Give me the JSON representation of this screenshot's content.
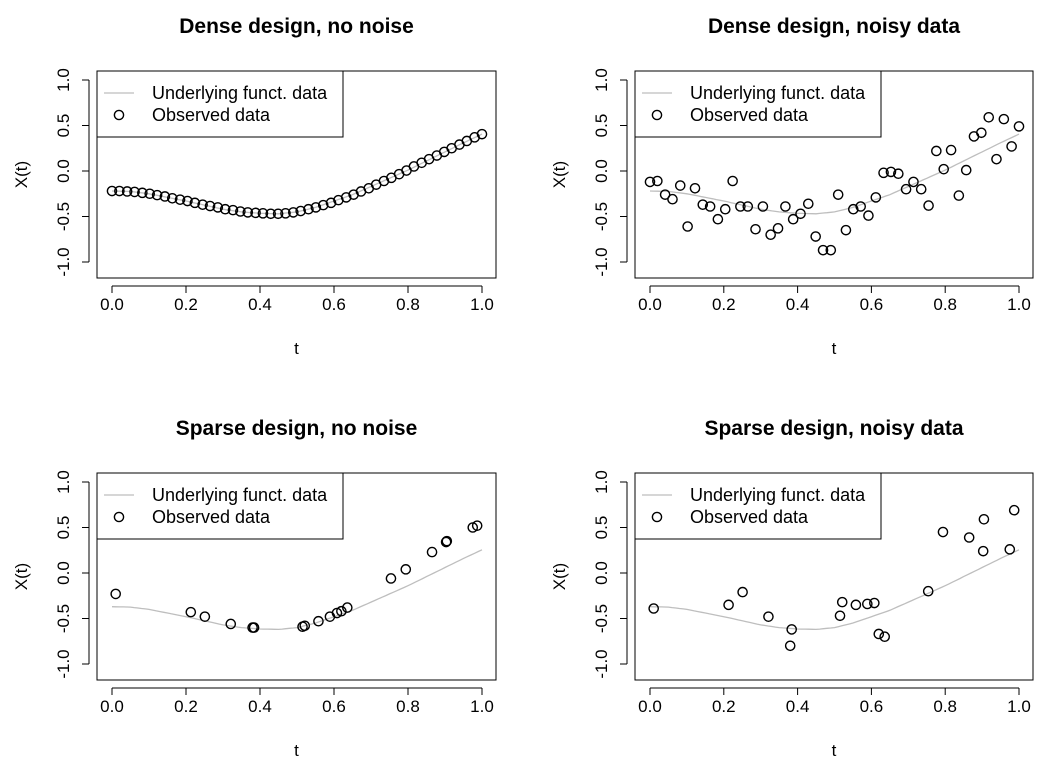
{
  "chart_data": [
    {
      "type": "scatter",
      "title": "Dense design, no noise",
      "xlabel": "t",
      "ylabel": "X(t)",
      "xlim": [
        0,
        1
      ],
      "ylim": [
        -1.1,
        1.1
      ],
      "xticks": [
        "0.0",
        "0.2",
        "0.4",
        "0.6",
        "0.8",
        "1.0"
      ],
      "yticks": [
        "-1.0",
        "-0.5",
        "0.0",
        "0.5",
        "1.0"
      ],
      "legend": [
        "Underlying funct. data",
        "Observed data"
      ],
      "line_color": "#bebebe",
      "series": [
        {
          "name": "Observed data",
          "x": [
            0.0,
            0.02,
            0.041,
            0.061,
            0.082,
            0.102,
            0.122,
            0.143,
            0.163,
            0.184,
            0.204,
            0.224,
            0.245,
            0.265,
            0.286,
            0.306,
            0.327,
            0.347,
            0.367,
            0.388,
            0.408,
            0.429,
            0.449,
            0.469,
            0.49,
            0.51,
            0.531,
            0.551,
            0.571,
            0.592,
            0.612,
            0.633,
            0.653,
            0.673,
            0.694,
            0.714,
            0.735,
            0.755,
            0.776,
            0.796,
            0.816,
            0.837,
            0.857,
            0.878,
            0.898,
            0.918,
            0.939,
            0.959,
            0.98,
            1.0
          ],
          "y": [
            -0.22,
            -0.22,
            -0.225,
            -0.23,
            -0.24,
            -0.25,
            -0.265,
            -0.28,
            -0.3,
            -0.315,
            -0.33,
            -0.35,
            -0.37,
            -0.385,
            -0.4,
            -0.42,
            -0.43,
            -0.445,
            -0.455,
            -0.46,
            -0.465,
            -0.47,
            -0.47,
            -0.465,
            -0.455,
            -0.44,
            -0.42,
            -0.4,
            -0.375,
            -0.35,
            -0.32,
            -0.29,
            -0.26,
            -0.225,
            -0.19,
            -0.15,
            -0.11,
            -0.075,
            -0.035,
            0.005,
            0.05,
            0.09,
            0.13,
            0.17,
            0.21,
            0.25,
            0.29,
            0.33,
            0.37,
            0.405
          ]
        }
      ]
    },
    {
      "type": "scatter",
      "title": "Dense design, noisy data",
      "xlabel": "t",
      "ylabel": "X(t)",
      "xlim": [
        0,
        1
      ],
      "ylim": [
        -1.1,
        1.1
      ],
      "xticks": [
        "0.0",
        "0.2",
        "0.4",
        "0.6",
        "0.8",
        "1.0"
      ],
      "yticks": [
        "-1.0",
        "-0.5",
        "0.0",
        "0.5",
        "1.0"
      ],
      "legend": [
        "Underlying funct. data",
        "Observed data"
      ],
      "line_color": "#bebebe",
      "series": [
        {
          "name": "Observed data",
          "x": [
            0.0,
            0.02,
            0.041,
            0.061,
            0.082,
            0.102,
            0.122,
            0.143,
            0.163,
            0.184,
            0.204,
            0.224,
            0.245,
            0.265,
            0.286,
            0.306,
            0.327,
            0.347,
            0.367,
            0.388,
            0.408,
            0.429,
            0.449,
            0.469,
            0.49,
            0.51,
            0.531,
            0.551,
            0.571,
            0.592,
            0.612,
            0.633,
            0.653,
            0.673,
            0.694,
            0.714,
            0.735,
            0.755,
            0.776,
            0.796,
            0.816,
            0.837,
            0.857,
            0.878,
            0.898,
            0.918,
            0.939,
            0.959,
            0.98,
            1.0
          ],
          "y": [
            -0.12,
            -0.11,
            -0.26,
            -0.31,
            -0.16,
            -0.61,
            -0.19,
            -0.37,
            -0.39,
            -0.53,
            -0.42,
            -0.11,
            -0.39,
            -0.39,
            -0.64,
            -0.39,
            -0.7,
            -0.63,
            -0.39,
            -0.53,
            -0.47,
            -0.36,
            -0.72,
            -0.87,
            -0.87,
            -0.26,
            -0.65,
            -0.42,
            -0.39,
            -0.49,
            -0.29,
            -0.02,
            -0.01,
            -0.03,
            -0.2,
            -0.12,
            -0.2,
            -0.38,
            0.22,
            0.02,
            0.23,
            -0.27,
            0.01,
            0.38,
            0.42,
            0.59,
            0.13,
            0.57,
            0.27,
            0.49
          ]
        }
      ]
    },
    {
      "type": "scatter",
      "title": "Sparse design, no noise",
      "xlabel": "t",
      "ylabel": "X(t)",
      "xlim": [
        0,
        1
      ],
      "ylim": [
        -1.1,
        1.1
      ],
      "xticks": [
        "0.0",
        "0.2",
        "0.4",
        "0.6",
        "0.8",
        "1.0"
      ],
      "yticks": [
        "-1.0",
        "-0.5",
        "0.0",
        "0.5",
        "1.0"
      ],
      "legend": [
        "Underlying funct. data",
        "Observed data"
      ],
      "line_color": "#bebebe",
      "series": [
        {
          "name": "Observed data",
          "x": [
            0.01,
            0.213,
            0.251,
            0.321,
            0.38,
            0.384,
            0.515,
            0.521,
            0.558,
            0.589,
            0.608,
            0.62,
            0.636,
            0.754,
            0.794,
            0.865,
            0.903,
            0.905,
            0.975,
            0.987
          ],
          "y": [
            -0.23,
            -0.43,
            -0.48,
            -0.56,
            -0.6,
            -0.6,
            -0.59,
            -0.58,
            -0.53,
            -0.48,
            -0.44,
            -0.42,
            -0.38,
            -0.06,
            0.04,
            0.23,
            0.34,
            0.35,
            0.5,
            0.52
          ]
        }
      ]
    },
    {
      "type": "scatter",
      "title": "Sparse design, noisy data",
      "xlabel": "t",
      "ylabel": "X(t)",
      "xlim": [
        0,
        1
      ],
      "ylim": [
        -1.1,
        1.1
      ],
      "xticks": [
        "0.0",
        "0.2",
        "0.4",
        "0.6",
        "0.8",
        "1.0"
      ],
      "yticks": [
        "-1.0",
        "-0.5",
        "0.0",
        "0.5",
        "1.0"
      ],
      "legend": [
        "Underlying funct. data",
        "Observed data"
      ],
      "line_color": "#bebebe",
      "series": [
        {
          "name": "Observed data",
          "x": [
            0.01,
            0.213,
            0.251,
            0.321,
            0.38,
            0.384,
            0.515,
            0.521,
            0.558,
            0.589,
            0.608,
            0.62,
            0.636,
            0.754,
            0.794,
            0.865,
            0.903,
            0.905,
            0.975,
            0.987
          ],
          "y": [
            -0.39,
            -0.35,
            -0.21,
            -0.48,
            -0.8,
            -0.62,
            -0.47,
            -0.32,
            -0.35,
            -0.34,
            -0.33,
            -0.67,
            -0.7,
            -0.2,
            0.45,
            0.39,
            0.24,
            0.59,
            0.26,
            0.69
          ]
        }
      ]
    }
  ]
}
